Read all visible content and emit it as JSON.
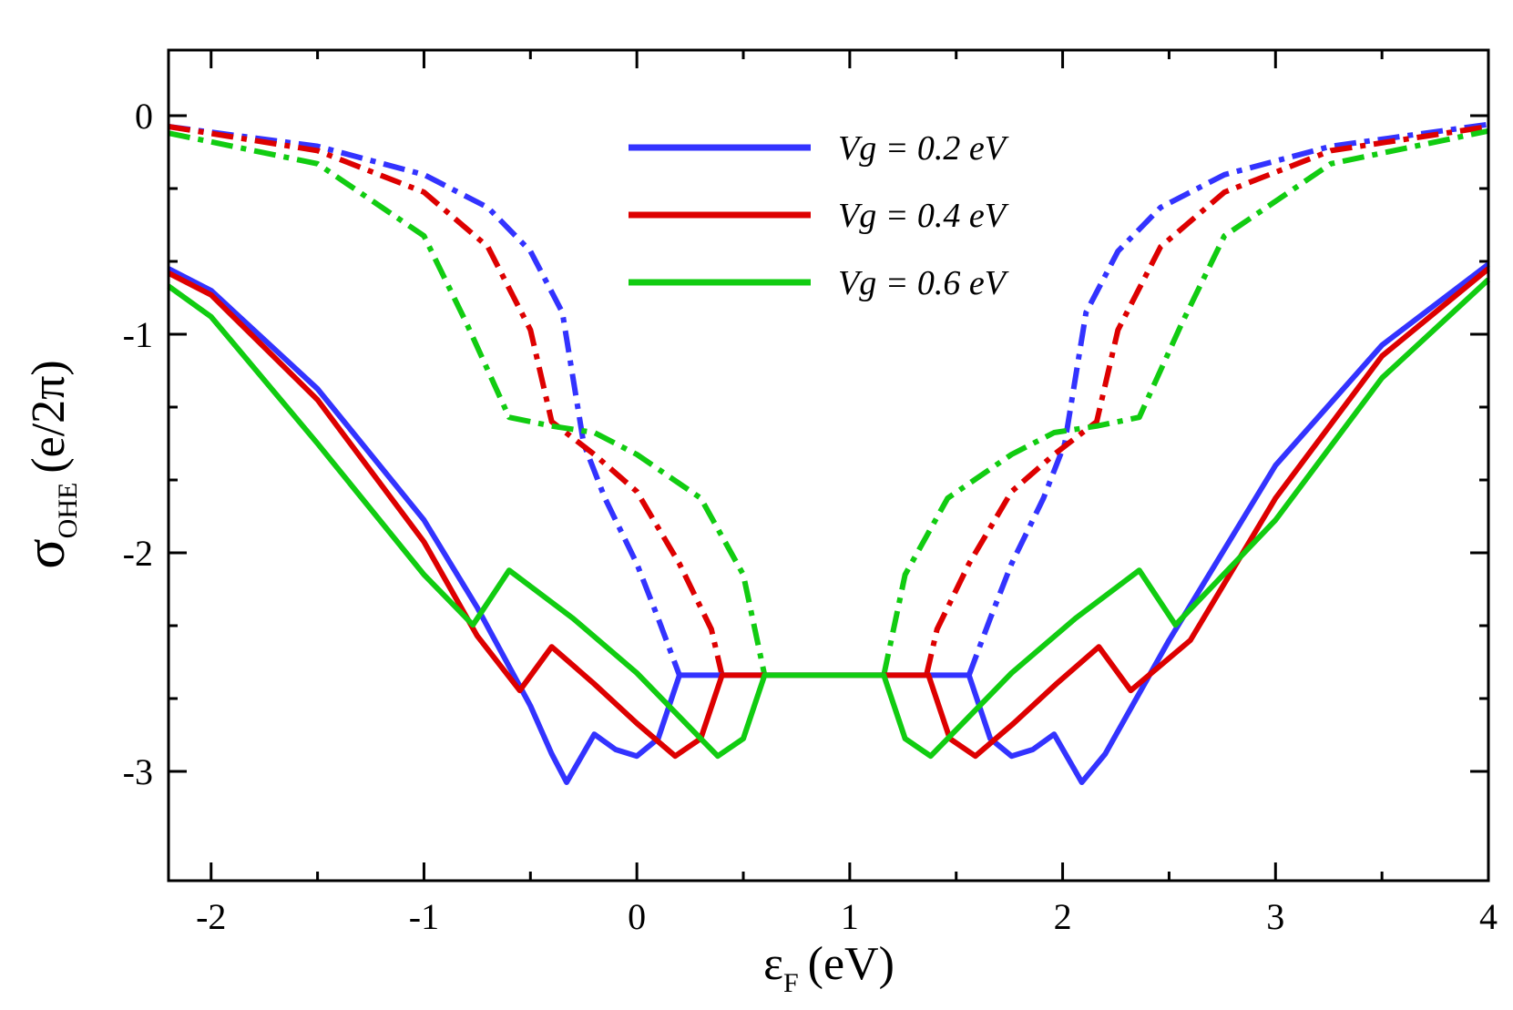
{
  "chart_data": {
    "type": "line",
    "xlabel": {
      "symbol": "ε",
      "sub": "F",
      "unit": "(eV)"
    },
    "ylabel": {
      "symbol": "σ",
      "sub": "OHE",
      "unit": "(e/2π)"
    },
    "xlim": [
      -2.2,
      4
    ],
    "ylim": [
      -3.5,
      0.3
    ],
    "xticks": [
      -2,
      -1,
      0,
      1,
      2,
      3,
      4
    ],
    "yticks": [
      0,
      -1,
      -2,
      -3
    ],
    "series": [
      {
        "color": "#3333ff",
        "style": "dashdot",
        "x": [
          -2.2,
          -1.5,
          -1,
          -0.7,
          -0.5,
          -0.35,
          -0.3,
          -0.25,
          -0.15,
          0,
          0.1,
          0.2,
          0.88,
          1.56,
          1.66,
          1.76,
          1.91,
          2.01,
          2.06,
          2.11,
          2.26,
          2.46,
          2.76,
          3.26,
          4
        ],
        "values": [
          -0.05,
          -0.14,
          -0.27,
          -0.42,
          -0.62,
          -0.9,
          -1.2,
          -1.5,
          -1.75,
          -2.05,
          -2.3,
          -2.56,
          null,
          -2.56,
          -2.3,
          -2.05,
          -1.75,
          -1.5,
          -1.2,
          -0.9,
          -0.62,
          -0.42,
          -0.27,
          -0.14,
          -0.04
        ]
      },
      {
        "color": "#dd0000",
        "style": "dashdot",
        "x": [
          -2.2,
          -1.5,
          -1,
          -0.7,
          -0.5,
          -0.4,
          -0.2,
          0,
          0.2,
          0.35,
          0.4,
          0.88,
          1.36,
          1.41,
          1.56,
          1.76,
          1.96,
          2.16,
          2.26,
          2.46,
          2.76,
          3.26,
          4
        ],
        "values": [
          -0.05,
          -0.16,
          -0.35,
          -0.6,
          -0.98,
          -1.4,
          -1.55,
          -1.72,
          -2.05,
          -2.35,
          -2.56,
          null,
          -2.56,
          -2.35,
          -2.05,
          -1.72,
          -1.55,
          -1.4,
          -0.98,
          -0.6,
          -0.35,
          -0.16,
          -0.05
        ]
      },
      {
        "color": "#11cc11",
        "style": "dashdot",
        "x": [
          -2.2,
          -1.5,
          -1,
          -0.8,
          -0.6,
          -0.4,
          -0.2,
          0,
          0.3,
          0.5,
          0.6,
          0.88,
          1.16,
          1.26,
          1.46,
          1.76,
          1.96,
          2.16,
          2.36,
          2.56,
          2.76,
          3.26,
          4
        ],
        "values": [
          -0.08,
          -0.22,
          -0.55,
          -0.95,
          -1.38,
          -1.42,
          -1.45,
          -1.55,
          -1.75,
          -2.1,
          -2.56,
          null,
          -2.56,
          -2.1,
          -1.75,
          -1.55,
          -1.45,
          -1.42,
          -1.38,
          -0.95,
          -0.55,
          -0.22,
          -0.07
        ]
      },
      {
        "name": "Vg = 0.2 eV",
        "color": "#3333ff",
        "style": "solid",
        "x": [
          -2.2,
          -2,
          -1.5,
          -1,
          -0.75,
          -0.5,
          -0.4,
          -0.33,
          -0.2,
          -0.1,
          0,
          0.1,
          0.2,
          1.56,
          1.66,
          1.76,
          1.86,
          1.96,
          2.09,
          2.2,
          2.5,
          3,
          3.5,
          4
        ],
        "values": [
          -0.7,
          -0.8,
          -1.25,
          -1.85,
          -2.25,
          -2.7,
          -2.92,
          -3.05,
          -2.83,
          -2.9,
          -2.93,
          -2.85,
          -2.56,
          -2.56,
          -2.85,
          -2.93,
          -2.9,
          -2.83,
          -3.05,
          -2.92,
          -2.4,
          -1.6,
          -1.05,
          -0.68
        ]
      },
      {
        "name": "Vg = 0.4 eV",
        "color": "#dd0000",
        "style": "solid",
        "x": [
          -2.2,
          -2,
          -1.5,
          -1,
          -0.75,
          -0.55,
          -0.4,
          -0.2,
          0,
          0.18,
          0.3,
          0.4,
          1.37,
          1.47,
          1.59,
          1.77,
          1.97,
          2.17,
          2.32,
          2.6,
          3,
          3.5,
          4
        ],
        "values": [
          -0.72,
          -0.82,
          -1.3,
          -1.95,
          -2.38,
          -2.63,
          -2.43,
          -2.6,
          -2.78,
          -2.93,
          -2.85,
          -2.56,
          -2.56,
          -2.85,
          -2.93,
          -2.78,
          -2.6,
          -2.43,
          -2.63,
          -2.4,
          -1.75,
          -1.1,
          -0.7
        ]
      },
      {
        "name": "Vg = 0.6 eV",
        "color": "#11cc11",
        "style": "solid",
        "x": [
          -2.2,
          -2,
          -1.5,
          -1,
          -0.77,
          -0.6,
          -0.3,
          0,
          0.2,
          0.38,
          0.5,
          0.6,
          1.16,
          1.26,
          1.38,
          1.56,
          1.76,
          2.06,
          2.36,
          2.53,
          3,
          3.5,
          4
        ],
        "values": [
          -0.78,
          -0.92,
          -1.5,
          -2.1,
          -2.33,
          -2.08,
          -2.3,
          -2.55,
          -2.75,
          -2.93,
          -2.85,
          -2.56,
          -2.56,
          -2.85,
          -2.93,
          -2.75,
          -2.55,
          -2.3,
          -2.08,
          -2.33,
          -1.85,
          -1.2,
          -0.75
        ]
      }
    ]
  }
}
